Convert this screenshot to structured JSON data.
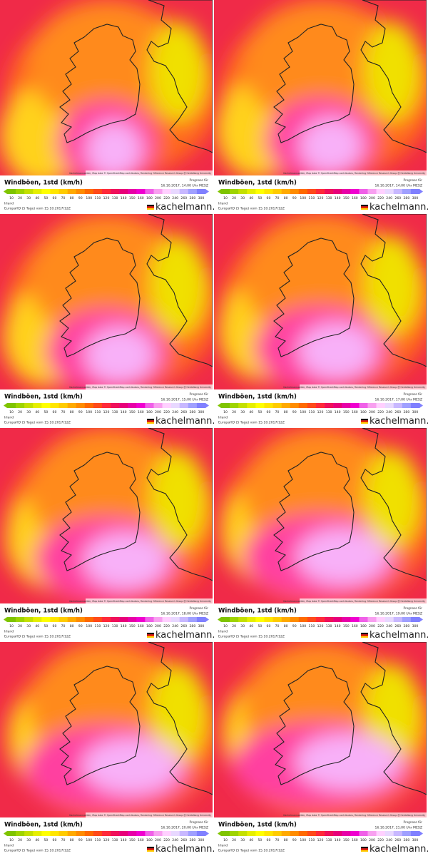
{
  "legend": {
    "title": "Windböen, 1std (km/h)",
    "forecast_label": "Prognose für",
    "region": "Irland",
    "model": "EuropaHD (5 Tage) vom 15.10.2017/12Z",
    "logo": "kachelmann.",
    "attribution": "Kachelmannwetter, Map data © OpenStreetMap contributors, Rendering GIScience Research Group @ Heidelberg University",
    "scale_ticks": [
      10,
      20,
      30,
      40,
      50,
      60,
      70,
      80,
      90,
      100,
      110,
      120,
      130,
      140,
      150,
      160,
      180,
      200,
      220,
      240,
      260,
      280,
      300
    ],
    "scale_colors": [
      "#7fc400",
      "#9fd400",
      "#c4e000",
      "#e6ef00",
      "#ffff00",
      "#ffe600",
      "#ffcc00",
      "#ffaa00",
      "#ff8c00",
      "#ff6a00",
      "#ff4a1a",
      "#ff2a3a",
      "#f0105a",
      "#e8007a",
      "#e800a8",
      "#f000d0",
      "#f060e8",
      "#f8a0f0",
      "#ffd0ff",
      "#e8d8ff",
      "#c8b8ff",
      "#a0a0ff",
      "#8080ff"
    ]
  },
  "panels": [
    {
      "time": "16.10.2017, 14:00 Uhr MESZ"
    },
    {
      "time": "16.10.2017, 14:00 Uhr MESZ"
    },
    {
      "time": "16.10.2017, 15:00 Uhr MESZ"
    },
    {
      "time": "16.10.2017, 17:00 Uhr MESZ"
    },
    {
      "time": "16.10.2017, 18:00 Uhr MESZ"
    },
    {
      "time": "16.10.2017, 19:00 Uhr MESZ"
    },
    {
      "time": "16.10.2017, 20:00 Uhr MESZ"
    },
    {
      "time": "16.10.2017, 21:00 Uhr MESZ"
    }
  ]
}
